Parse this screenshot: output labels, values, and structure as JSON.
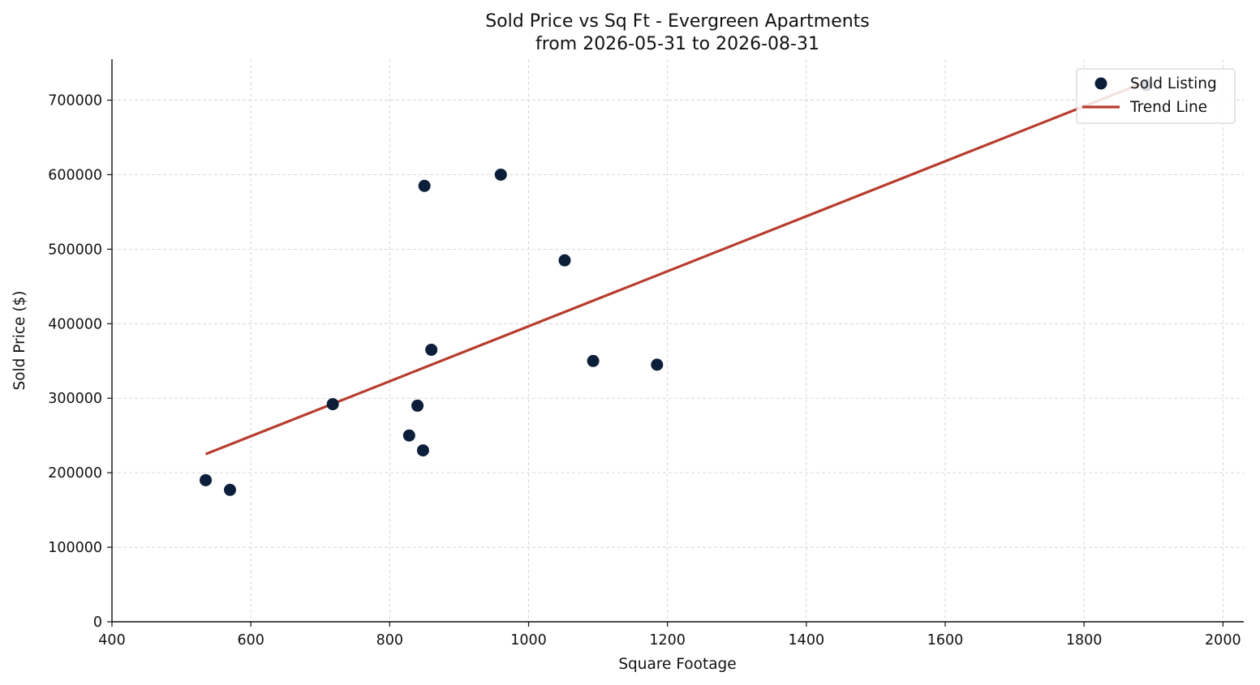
{
  "chart_data": {
    "type": "scatter",
    "title": "Sold Price vs Sq Ft - Evergreen Apartments",
    "subtitle": "from 2026-05-31 to 2026-08-31",
    "xlabel": "Square Footage",
    "ylabel": "Sold Price ($)",
    "xlim": [
      400,
      2030
    ],
    "ylim": [
      0,
      755000
    ],
    "x_ticks": [
      400,
      600,
      800,
      1000,
      1200,
      1400,
      1600,
      1800,
      2000
    ],
    "y_ticks": [
      0,
      100000,
      200000,
      300000,
      400000,
      500000,
      600000,
      700000
    ],
    "grid": true,
    "legend_position": "top-right",
    "series": [
      {
        "name": "Sold Listing",
        "kind": "scatter",
        "color": "#0b1f3a",
        "x": [
          535,
          570,
          718,
          828,
          840,
          848,
          850,
          860,
          960,
          1052,
          1093,
          1185,
          1890
        ],
        "y": [
          190000,
          177000,
          292000,
          250000,
          290000,
          230000,
          585000,
          365000,
          600000,
          485000,
          350000,
          345000,
          720000
        ]
      },
      {
        "name": "Trend Line",
        "kind": "line",
        "color": "#b73d2e",
        "x": [
          535,
          1890
        ],
        "y": [
          225000,
          725000
        ]
      }
    ]
  }
}
